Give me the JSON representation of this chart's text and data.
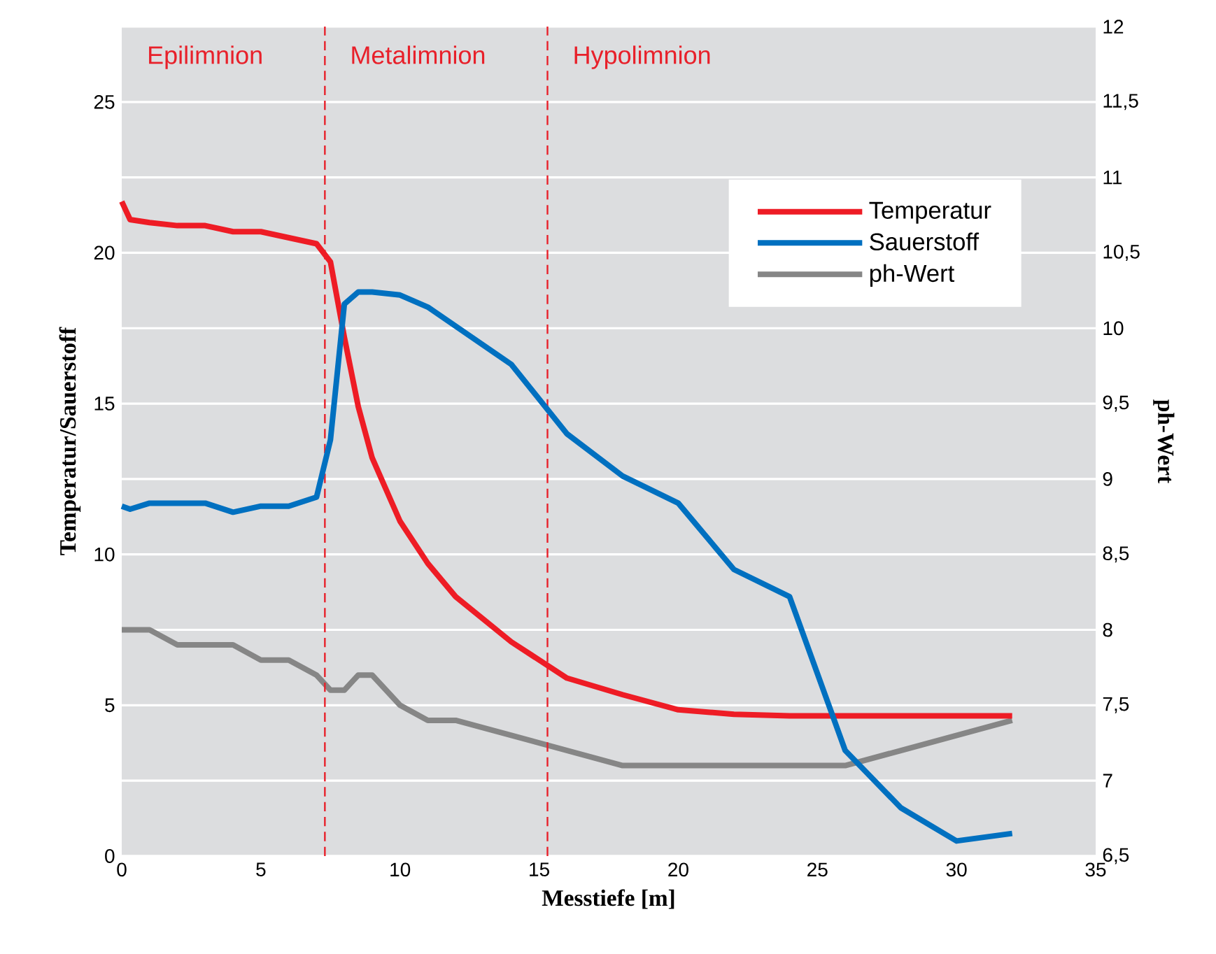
{
  "chart_data": {
    "type": "line",
    "xlabel": "Messtiefe [m]",
    "ylabel": "Temperatur/Sauerstoff",
    "y2label": "ph-Wert",
    "xlim": [
      0,
      35
    ],
    "xticks": [
      0,
      5,
      10,
      15,
      20,
      25,
      30,
      35
    ],
    "ylim": [
      0,
      27.5
    ],
    "yticks": [
      0,
      5,
      10,
      15,
      20,
      25
    ],
    "y2lim": [
      6.5,
      12
    ],
    "y2ticks": [
      {
        "value": 6.5,
        "label": "6,5"
      },
      7,
      {
        "value": 7.5,
        "label": "7,5"
      },
      8,
      {
        "value": 8.5,
        "label": "8,5"
      },
      9,
      {
        "value": 9.5,
        "label": "9,5"
      },
      10,
      {
        "value": 10.5,
        "label": "10,5"
      },
      11,
      {
        "value": 11.5,
        "label": "11,5"
      },
      12
    ],
    "grid": true,
    "legend": "top right",
    "marker": "none",
    "line_style": "solid",
    "series": [
      {
        "name": "Temperatur",
        "color": "#ee1c25",
        "x": [
          0,
          0.3,
          1,
          2,
          3,
          4,
          5,
          6,
          7,
          7.5,
          8,
          8.5,
          9,
          10,
          11,
          12,
          14,
          16,
          18,
          20,
          22,
          24,
          32
        ],
        "values": [
          21.7,
          21.1,
          21.0,
          20.9,
          20.9,
          20.7,
          20.7,
          20.5,
          20.3,
          19.7,
          17.2,
          14.9,
          13.2,
          11.1,
          9.7,
          8.6,
          7.1,
          5.9,
          5.35,
          4.85,
          4.7,
          4.65,
          4.65
        ]
      },
      {
        "name": "Sauerstoff",
        "color": "#0070c0",
        "x": [
          0,
          0.3,
          1,
          3,
          4,
          5,
          6,
          7,
          7.5,
          8,
          8.5,
          9,
          10,
          11,
          14,
          16,
          18,
          20,
          22,
          24,
          26,
          28,
          30,
          32
        ],
        "values": [
          11.6,
          11.5,
          11.7,
          11.7,
          11.4,
          11.6,
          11.6,
          11.9,
          13.8,
          18.3,
          18.7,
          18.7,
          18.6,
          18.2,
          16.3,
          14.0,
          12.6,
          11.7,
          9.5,
          8.6,
          3.5,
          1.6,
          0.5,
          0.75
        ]
      },
      {
        "name": "ph-Wert",
        "color": "#868686",
        "axis": "y2",
        "x": [
          0,
          1,
          2,
          4,
          5,
          6,
          7,
          7.5,
          8,
          8.5,
          9,
          10,
          11,
          12,
          14,
          18,
          26,
          28,
          32
        ],
        "values": [
          8.0,
          8.0,
          7.9,
          7.9,
          7.8,
          7.8,
          7.7,
          7.6,
          7.6,
          7.7,
          7.7,
          7.5,
          7.4,
          7.4,
          7.3,
          7.1,
          7.1,
          7.2,
          7.4
        ]
      }
    ],
    "ref_lines": [
      {
        "axis": "x",
        "value": 7.3,
        "color": "#e8202a",
        "line_style": "dashed"
      },
      {
        "axis": "x",
        "value": 15.3,
        "color": "#e8202a",
        "line_style": "dashed"
      }
    ],
    "annotations": [
      "Epilimnion",
      "Metalimnion",
      "Hypolimnion"
    ]
  }
}
